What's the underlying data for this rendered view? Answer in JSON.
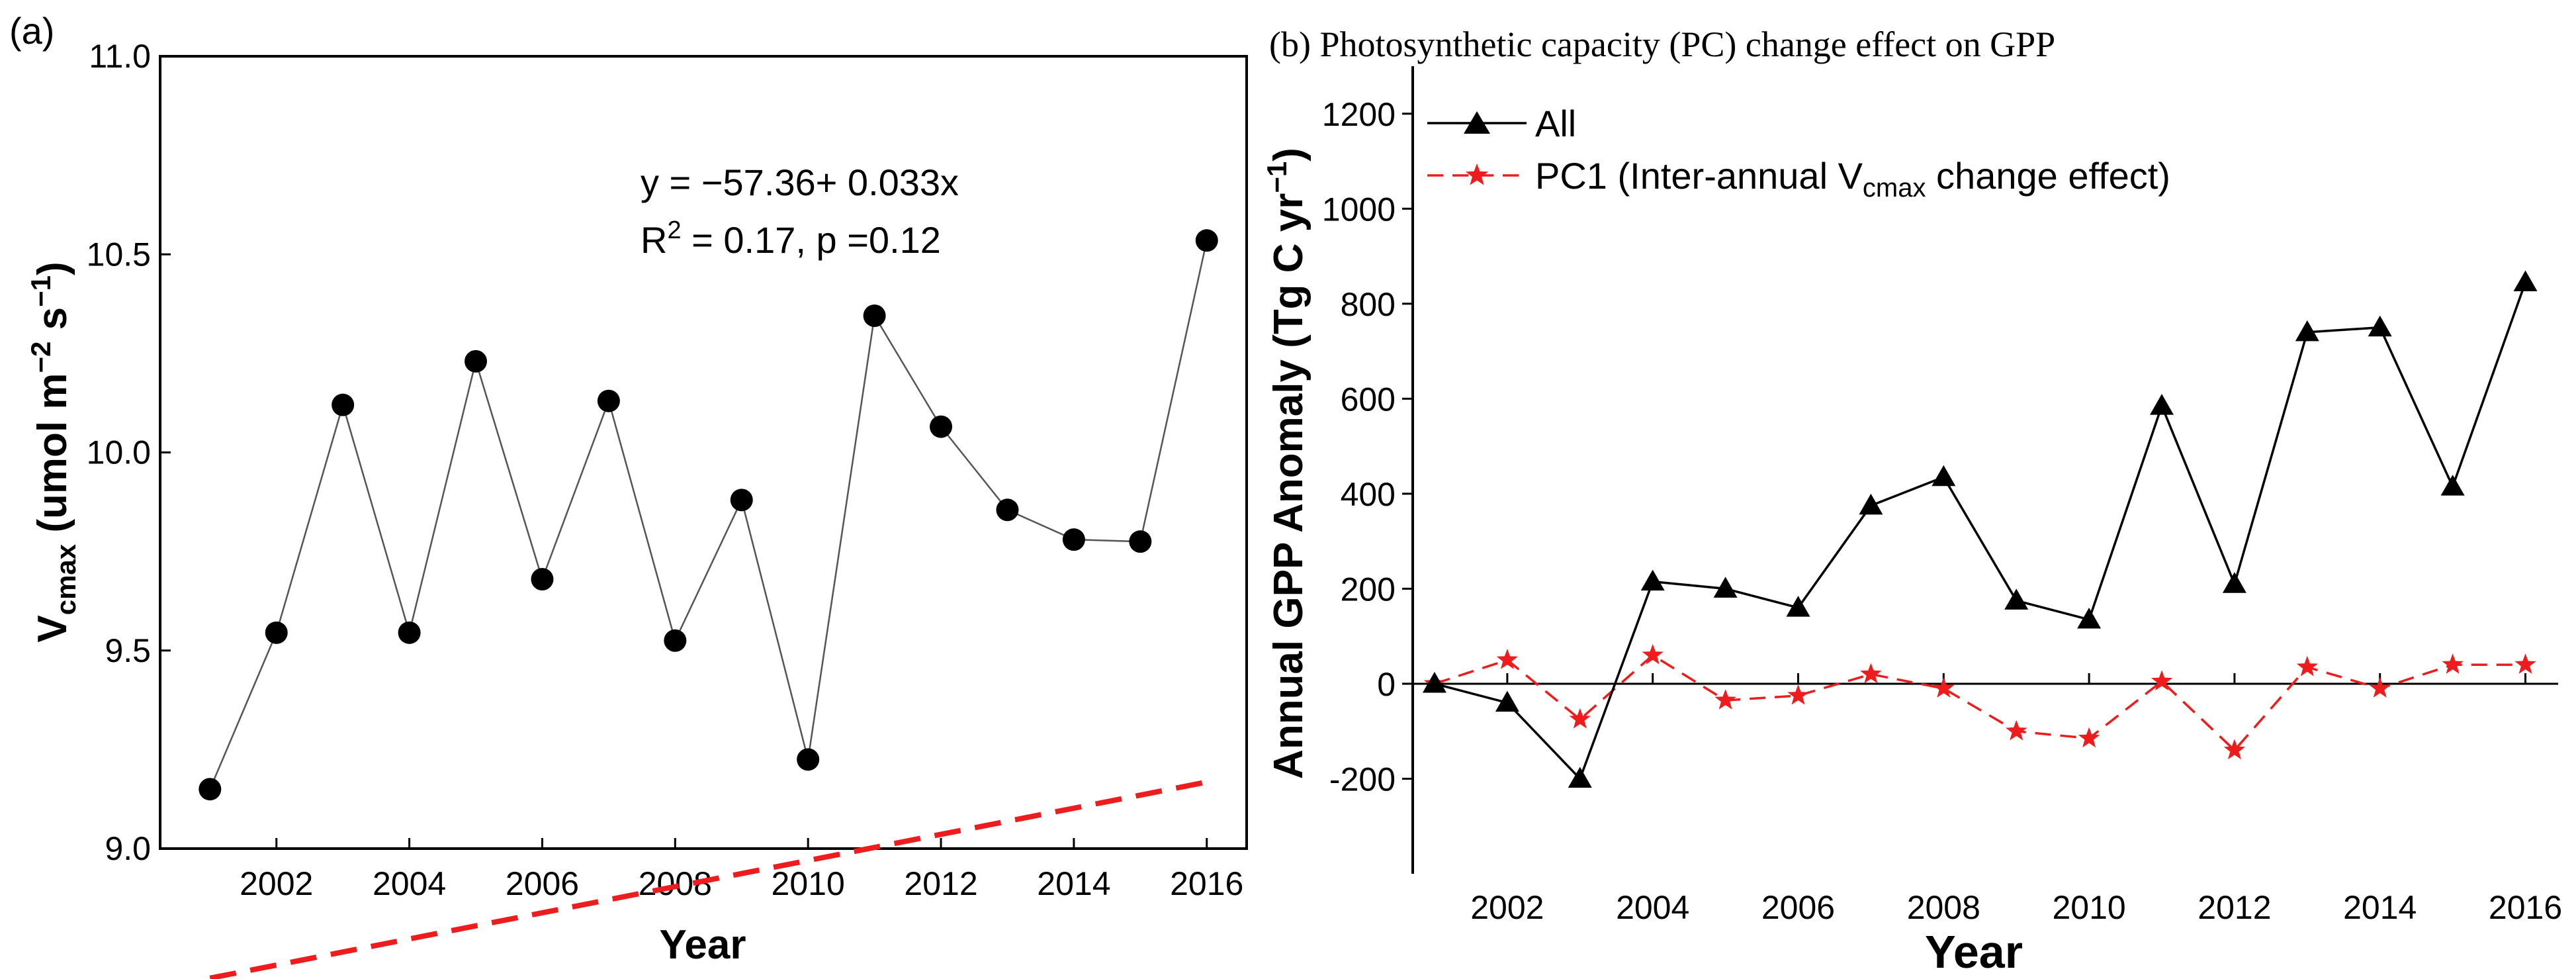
{
  "chart_data": [
    {
      "type": "line",
      "panel_label": "(a)",
      "xlabel": "Year",
      "ylabel_main": "V",
      "ylabel_sub": "cmax",
      "ylabel_units_pre": " (umol m",
      "ylabel_units_exp1": "−2",
      "ylabel_units_mid": " s",
      "ylabel_units_exp2": "−1",
      "ylabel_units_post": ")",
      "xlim": [
        2000.25,
        2016.6
      ],
      "ylim": [
        9.0,
        11.0
      ],
      "xticks": [
        2002,
        2004,
        2006,
        2008,
        2010,
        2012,
        2014,
        2016
      ],
      "xtick_labels": [
        "2002",
        "2004",
        "2006",
        "2008",
        "2010",
        "2012",
        "2014",
        "2016"
      ],
      "yticks": [
        9.0,
        9.5,
        10.0,
        10.5,
        11.0
      ],
      "ytick_labels": [
        "9.0",
        "9.5",
        "10.0",
        "10.5",
        "11.0"
      ],
      "x": [
        2001,
        2002,
        2003,
        2004,
        2005,
        2006,
        2007,
        2008,
        2009,
        2010,
        2011,
        2012,
        2013,
        2014,
        2015,
        2016
      ],
      "values": [
        9.15,
        9.545,
        10.12,
        9.545,
        10.23,
        9.68,
        10.13,
        9.525,
        9.88,
        9.225,
        10.345,
        10.065,
        9.855,
        9.78,
        9.775,
        10.535
      ],
      "trend": {
        "intercept": -57.36,
        "slope": 0.033,
        "color": "#ee1c1c"
      },
      "equation_text": "y = −57.36+ 0.033x",
      "r2_pre": "R",
      "r2_exp": "2",
      "r2_post": " = 0.17, p =0.12",
      "grid": false
    },
    {
      "type": "line",
      "panel_label": "(b)",
      "title": "Photosynthetic capacity (PC) change effect on GPP",
      "xlabel": "Year",
      "ylabel_pre": "Annual GPP Anomaly (Tg C yr",
      "ylabel_exp": "−1",
      "ylabel_post": ")",
      "xlim": [
        2000.7,
        2016.45
      ],
      "ylim": [
        -400,
        1300
      ],
      "xticks": [
        2002,
        2004,
        2006,
        2008,
        2010,
        2012,
        2014,
        2016
      ],
      "xtick_labels": [
        "2002",
        "2004",
        "2006",
        "2008",
        "2010",
        "2012",
        "2014",
        "2016"
      ],
      "yticks": [
        -200,
        0,
        200,
        400,
        600,
        800,
        1000,
        1200
      ],
      "ytick_labels": [
        "-200",
        "0",
        "200",
        "400",
        "600",
        "800",
        "1000",
        "1200"
      ],
      "x": [
        2001,
        2002,
        2003,
        2004,
        2005,
        2006,
        2007,
        2008,
        2009,
        2010,
        2011,
        2012,
        2013,
        2014,
        2015,
        2016
      ],
      "series": [
        {
          "name": "All",
          "color": "#000000",
          "values": [
            0,
            -40,
            -200,
            215,
            200,
            160,
            375,
            435,
            175,
            135,
            585,
            210,
            740,
            750,
            415,
            845
          ]
        },
        {
          "name": "PC1",
          "color": "#ee1c1c",
          "values": [
            0,
            50,
            -75,
            60,
            -35,
            -25,
            20,
            -10,
            -100,
            -115,
            5,
            -140,
            35,
            -10,
            40,
            40
          ]
        }
      ],
      "legend": {
        "position": "top-left",
        "all_label": "All",
        "pc1_pre": "PC1 (Inter-annual V",
        "pc1_sub": "cmax",
        "pc1_post": " change effect)"
      },
      "grid": false
    }
  ]
}
